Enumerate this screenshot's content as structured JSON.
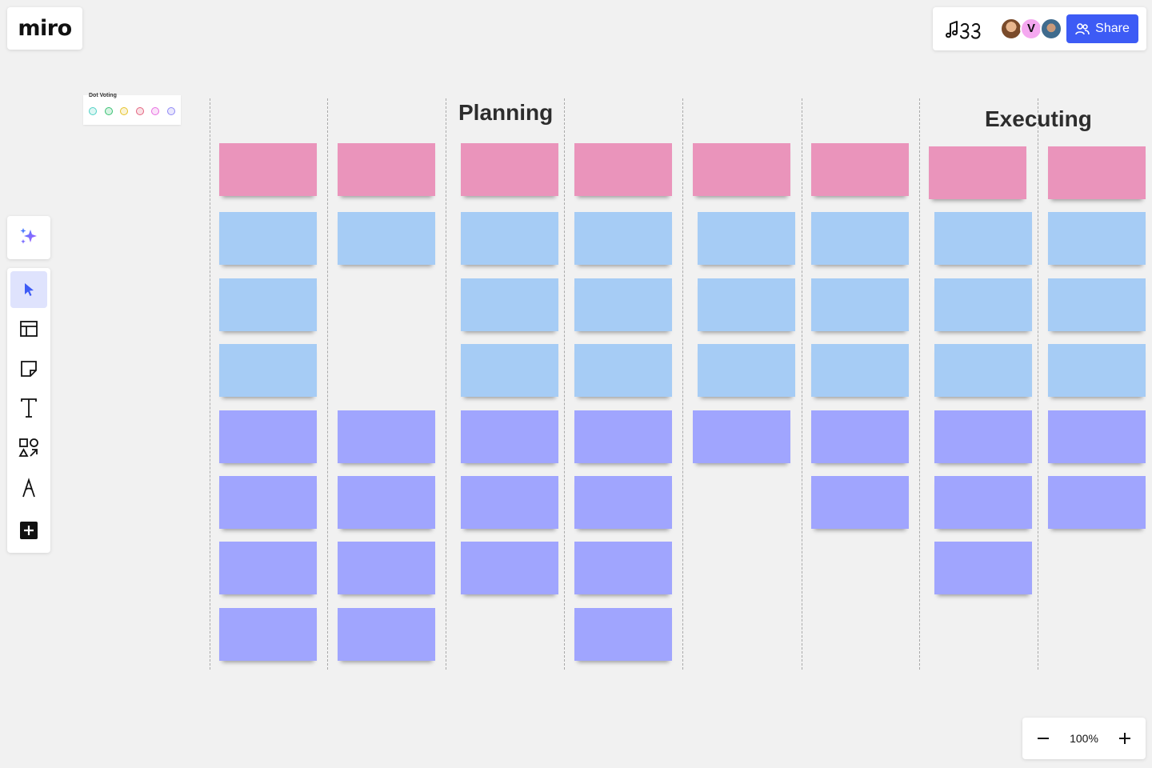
{
  "app": {
    "logo_text": "miro"
  },
  "header": {
    "collaborators": [
      {
        "name": "user-avatar-1",
        "initial": ""
      },
      {
        "name": "user-avatar-2",
        "initial": "V"
      },
      {
        "name": "user-avatar-3",
        "initial": ""
      }
    ],
    "share_label": "Share"
  },
  "toolbar": {
    "tools": [
      "ai-sparkle",
      "select",
      "templates",
      "sticky-note",
      "text",
      "shapes",
      "pen",
      "more"
    ]
  },
  "dot_voting": {
    "label": "Dot Voting",
    "dot_colors": [
      "#4fd1c5",
      "#38c172",
      "#e6c229",
      "#e3637f",
      "#e86de0",
      "#8f88f5"
    ]
  },
  "board": {
    "sections": [
      {
        "title": "Planning"
      },
      {
        "title": "Executing"
      }
    ],
    "colors": {
      "pink": "#ea94bb",
      "blue": "#a6ccf5",
      "violet": "#a0a5fe"
    },
    "columns": [
      [
        "pink",
        "blue",
        "blue",
        "blue",
        "violet",
        "violet",
        "violet",
        "violet"
      ],
      [
        "pink",
        "blue",
        null,
        null,
        "violet",
        "violet",
        "violet",
        "violet"
      ],
      [
        "pink",
        "blue",
        "blue",
        "blue",
        "violet",
        "violet",
        "violet",
        null
      ],
      [
        "pink",
        "blue",
        "blue",
        "blue",
        "violet",
        "violet",
        "violet",
        "violet"
      ],
      [
        "pink",
        "blue",
        "blue",
        "blue",
        "violet",
        null,
        null,
        null
      ],
      [
        "pink",
        "blue",
        "blue",
        "blue",
        "violet",
        "violet",
        null,
        null
      ],
      [
        "pink",
        "blue",
        "blue",
        "blue",
        "violet",
        "violet",
        "violet",
        null
      ],
      [
        "pink",
        "blue",
        "blue",
        "blue",
        "violet",
        "violet",
        null,
        null
      ]
    ]
  },
  "zoom": {
    "level": "100%"
  }
}
